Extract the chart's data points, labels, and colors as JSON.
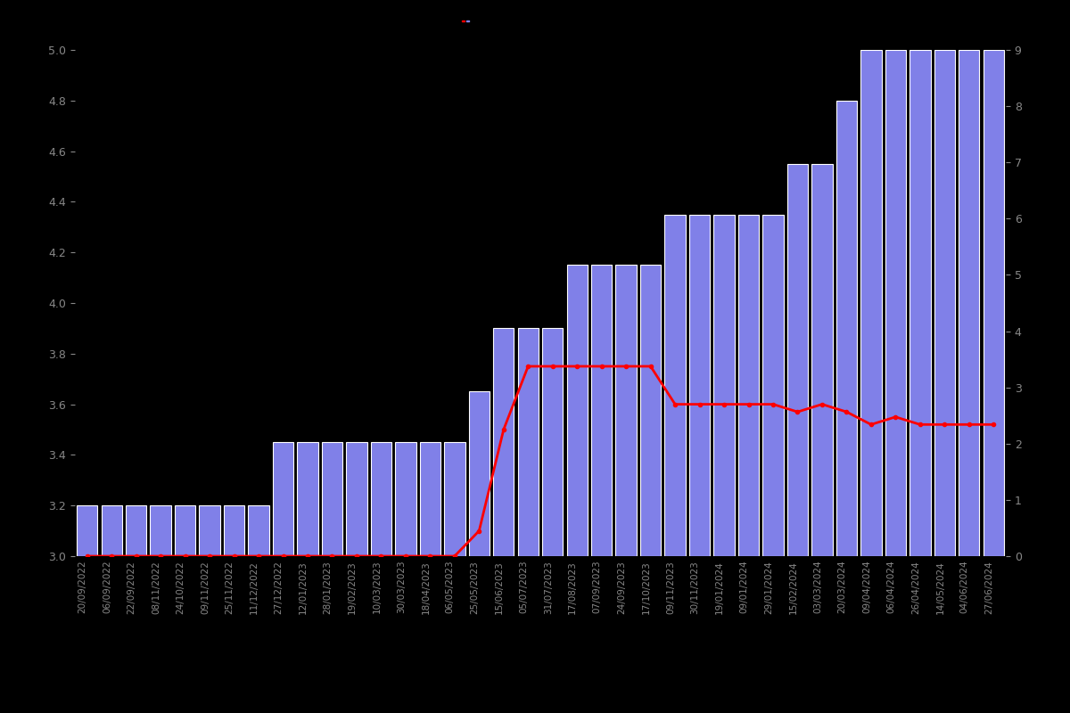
{
  "background_color": "#000000",
  "bar_color": "#8080e8",
  "bar_edge_color": "#ffffff",
  "line_color": "#ff0000",
  "text_color": "#888888",
  "dates": [
    "20/09/2022",
    "06/09/2022",
    "22/09/2022",
    "08/11/2022",
    "24/10/2022",
    "09/11/2022",
    "25/11/2022",
    "11/12/2022",
    "27/12/2022",
    "12/01/2023",
    "28/01/2023",
    "19/02/2023",
    "10/03/2023",
    "30/03/2023",
    "18/04/2023",
    "06/05/2023",
    "25/05/2023",
    "15/06/2023",
    "05/07/2023",
    "31/07/2023",
    "17/08/2023",
    "07/09/2023",
    "24/09/2023",
    "17/10/2023",
    "09/11/2023",
    "30/11/2023",
    "19/01/2024",
    "09/01/2024",
    "29/01/2024",
    "15/02/2024",
    "03/03/2024",
    "20/03/2024",
    "09/04/2024",
    "06/04/2024",
    "26/04/2024",
    "14/05/2024",
    "04/06/2024",
    "27/06/2024"
  ],
  "bar_values": [
    3.2,
    3.2,
    3.2,
    3.2,
    3.2,
    3.2,
    3.2,
    3.2,
    3.45,
    3.45,
    3.45,
    3.45,
    3.45,
    3.45,
    3.45,
    3.45,
    3.65,
    3.9,
    3.9,
    3.9,
    4.15,
    4.15,
    4.15,
    4.15,
    4.35,
    4.35,
    4.35,
    4.35,
    4.35,
    4.55,
    4.55,
    4.8,
    5.0,
    5.0,
    5.0,
    5.0,
    5.0,
    5.0
  ],
  "line_values": [
    3.0,
    3.0,
    3.0,
    3.0,
    3.0,
    3.0,
    3.0,
    3.0,
    3.0,
    3.0,
    3.0,
    3.0,
    3.0,
    3.0,
    3.0,
    3.0,
    3.1,
    3.5,
    3.75,
    3.75,
    3.75,
    3.75,
    3.75,
    3.75,
    3.6,
    3.6,
    3.6,
    3.6,
    3.6,
    3.57,
    3.6,
    3.57,
    3.52,
    3.55,
    3.52,
    3.52,
    3.52,
    3.52
  ],
  "ylim_left": [
    3.0,
    5.0
  ],
  "ylim_right": [
    0,
    9
  ],
  "yticks_left": [
    3.0,
    3.2,
    3.4,
    3.6,
    3.8,
    4.0,
    4.2,
    4.4,
    4.6,
    4.8,
    5.0
  ],
  "yticks_right": [
    0,
    1,
    2,
    3,
    4,
    5,
    6,
    7,
    8,
    9
  ],
  "figsize": [
    12.0,
    8.0
  ],
  "dpi": 100
}
